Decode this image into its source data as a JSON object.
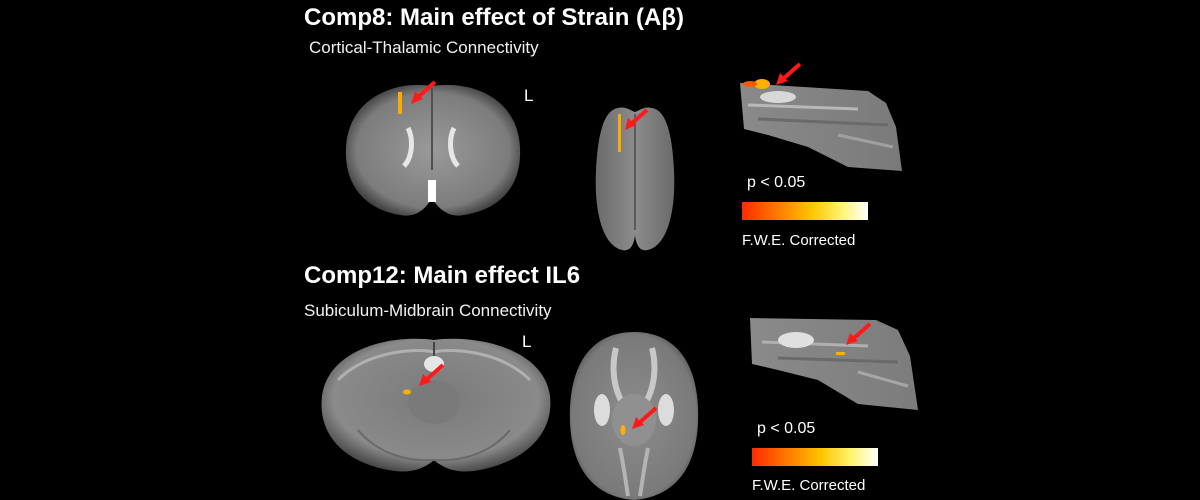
{
  "panel_top": {
    "title": "Comp8: Main effect of Strain (Aβ)",
    "subtitle": "Cortical-Thalamic  Connectivity",
    "orientation_label": "L",
    "legend": {
      "p_label": "p < 0.05",
      "correction_label": "F.W.E. Corrected"
    }
  },
  "panel_bottom": {
    "title": "Comp12: Main effect IL6",
    "subtitle": "Subiculum-Midbrain  Connectivity",
    "orientation_label": "L",
    "legend": {
      "p_label": "p < 0.05",
      "correction_label": "F.W.E. Corrected"
    }
  },
  "colors": {
    "background": "#000000",
    "arrow": "#ff1a1a",
    "activation": "#ffb000",
    "brain_gray": "#8a8a8a"
  }
}
